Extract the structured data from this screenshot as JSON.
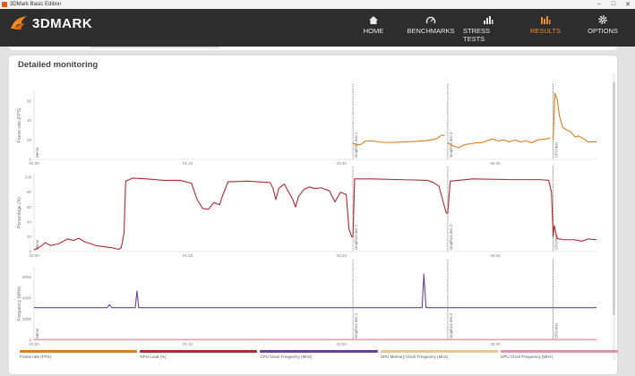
{
  "window": {
    "title": "3DMark Basic Edition"
  },
  "brand": {
    "name": "3DMARK",
    "accent": "#f08a22"
  },
  "nav": [
    {
      "id": "home",
      "label": "HOME",
      "icon": "home-icon"
    },
    {
      "id": "benchmarks",
      "label": "BENCHMARKS",
      "icon": "gauge-icon"
    },
    {
      "id": "stress",
      "label": "STRESS TESTS",
      "icon": "bar-chart-icon"
    },
    {
      "id": "results",
      "label": "RESULTS",
      "icon": "results-icon",
      "active": true
    },
    {
      "id": "options",
      "label": "OPTIONS",
      "icon": "gear-icon"
    }
  ],
  "section_title": "Detailed monitoring",
  "chart_data": [
    {
      "type": "line",
      "ylabel": "Frame rate (FPS)",
      "ylim": [
        0,
        70
      ],
      "yticks": [
        0,
        20,
        40,
        60
      ],
      "xticks": [
        "00:00",
        "01:40",
        "03:20",
        "05:00"
      ],
      "markers": [
        {
          "label": "Demo",
          "x": 0
        },
        {
          "label": "Graphics test 1",
          "x": 0.567
        },
        {
          "label": "Graphics test 2",
          "x": 0.7355
        },
        {
          "label": "CPU test",
          "x": 0.923
        }
      ],
      "series": [
        {
          "name": "Frame rate (FPS)",
          "color": "#e07c1c",
          "points": [
            [
              0.567,
              17
            ],
            [
              0.572,
              15
            ],
            [
              0.58,
              15
            ],
            [
              0.59,
              19
            ],
            [
              0.6,
              19
            ],
            [
              0.62,
              17.5
            ],
            [
              0.64,
              17.5
            ],
            [
              0.66,
              18
            ],
            [
              0.68,
              18.5
            ],
            [
              0.7,
              19.5
            ],
            [
              0.715,
              21
            ],
            [
              0.725,
              25
            ],
            [
              0.73,
              24.5
            ],
            [
              0.7355,
              17
            ],
            [
              0.745,
              14
            ],
            [
              0.755,
              12
            ],
            [
              0.765,
              15
            ],
            [
              0.775,
              16
            ],
            [
              0.785,
              17
            ],
            [
              0.795,
              17
            ],
            [
              0.805,
              19
            ],
            [
              0.815,
              21
            ],
            [
              0.825,
              19
            ],
            [
              0.835,
              20
            ],
            [
              0.845,
              18
            ],
            [
              0.855,
              20
            ],
            [
              0.865,
              18
            ],
            [
              0.875,
              19
            ],
            [
              0.885,
              17
            ],
            [
              0.895,
              20
            ],
            [
              0.91,
              21
            ],
            [
              0.918,
              22
            ],
            [
              0.923,
              20
            ],
            [
              0.926,
              68
            ],
            [
              0.93,
              62
            ],
            [
              0.934,
              45
            ],
            [
              0.94,
              33
            ],
            [
              0.948,
              30
            ],
            [
              0.955,
              28
            ],
            [
              0.962,
              23
            ],
            [
              0.968,
              24
            ],
            [
              0.975,
              22
            ],
            [
              0.985,
              18
            ],
            [
              1.0,
              18
            ]
          ]
        }
      ]
    },
    {
      "type": "line",
      "ylabel": "Percentage (%)",
      "ylim": [
        0,
        105
      ],
      "yticks": [
        0,
        20,
        40,
        60,
        80,
        100
      ],
      "xticks": [
        "00:00",
        "01:40",
        "03:20",
        "05:00"
      ],
      "markers": [
        {
          "label": "Demo",
          "x": 0
        },
        {
          "label": "Graphics test 1",
          "x": 0.567
        },
        {
          "label": "Graphics test 2",
          "x": 0.7355
        },
        {
          "label": "CPU test",
          "x": 0.923
        }
      ],
      "series": [
        {
          "name": "GPU Load (%)",
          "color": "#b3282d",
          "points": [
            [
              0,
              2
            ],
            [
              0.012,
              7
            ],
            [
              0.02,
              12
            ],
            [
              0.03,
              8
            ],
            [
              0.045,
              11
            ],
            [
              0.06,
              17
            ],
            [
              0.07,
              15
            ],
            [
              0.08,
              18
            ],
            [
              0.09,
              13
            ],
            [
              0.1,
              11
            ],
            [
              0.11,
              8
            ],
            [
              0.12,
              7
            ],
            [
              0.13,
              6
            ],
            [
              0.14,
              5
            ],
            [
              0.15,
              3
            ],
            [
              0.155,
              5
            ],
            [
              0.16,
              25
            ],
            [
              0.163,
              95
            ],
            [
              0.175,
              99
            ],
            [
              0.2,
              98
            ],
            [
              0.23,
              96
            ],
            [
              0.26,
              96
            ],
            [
              0.28,
              92
            ],
            [
              0.29,
              70
            ],
            [
              0.3,
              58
            ],
            [
              0.31,
              57
            ],
            [
              0.32,
              66
            ],
            [
              0.33,
              63
            ],
            [
              0.335,
              75
            ],
            [
              0.345,
              94
            ],
            [
              0.38,
              95
            ],
            [
              0.42,
              93
            ],
            [
              0.425,
              85
            ],
            [
              0.43,
              70
            ],
            [
              0.435,
              85
            ],
            [
              0.445,
              91
            ],
            [
              0.46,
              70
            ],
            [
              0.465,
              60
            ],
            [
              0.47,
              74
            ],
            [
              0.48,
              84
            ],
            [
              0.49,
              87
            ],
            [
              0.5,
              85
            ],
            [
              0.51,
              86
            ],
            [
              0.525,
              82
            ],
            [
              0.535,
              67
            ],
            [
              0.545,
              80
            ],
            [
              0.555,
              77
            ],
            [
              0.56,
              30
            ],
            [
              0.565,
              20
            ],
            [
              0.567,
              20
            ],
            [
              0.57,
              98
            ],
            [
              0.6,
              98
            ],
            [
              0.65,
              97
            ],
            [
              0.7,
              96
            ],
            [
              0.71,
              93
            ],
            [
              0.72,
              88
            ],
            [
              0.728,
              65
            ],
            [
              0.733,
              52
            ],
            [
              0.7355,
              52
            ],
            [
              0.74,
              95
            ],
            [
              0.78,
              98
            ],
            [
              0.85,
              97
            ],
            [
              0.9,
              97
            ],
            [
              0.915,
              96
            ],
            [
              0.92,
              80
            ],
            [
              0.923,
              20
            ],
            [
              0.925,
              35
            ],
            [
              0.93,
              18
            ],
            [
              0.94,
              16
            ],
            [
              0.96,
              16
            ],
            [
              0.975,
              14
            ],
            [
              0.985,
              17
            ],
            [
              1.0,
              16
            ]
          ]
        }
      ]
    },
    {
      "type": "line",
      "ylabel": "Frequency (MHz)",
      "ylim": [
        0,
        7000
      ],
      "yticks": [
        0,
        2000,
        4000,
        6000
      ],
      "xticks": [
        "00:00",
        "01:40",
        "03:20",
        "05:00"
      ],
      "markers": [
        {
          "label": "Demo",
          "x": 0
        },
        {
          "label": "Graphics test 1",
          "x": 0.567
        },
        {
          "label": "Graphics test 2",
          "x": 0.7355
        },
        {
          "label": "CPU test",
          "x": 0.923
        }
      ],
      "series": [
        {
          "name": "CPU Clock Frequency (MHz)",
          "color": "#6a3fa0",
          "points": [
            [
              0,
              3100
            ],
            [
              0.13,
              3100
            ],
            [
              0.134,
              3400
            ],
            [
              0.138,
              3100
            ],
            [
              0.18,
              3100
            ],
            [
              0.183,
              4700
            ],
            [
              0.186,
              3100
            ],
            [
              0.65,
              3100
            ],
            [
              0.69,
              3100
            ],
            [
              0.693,
              6300
            ],
            [
              0.697,
              3100
            ],
            [
              1.0,
              3100
            ]
          ]
        },
        {
          "name": "GPU Memory Clock Frequency (MHz)",
          "color": "#e6c98a",
          "points": [
            [
              0,
              40
            ],
            [
              1.0,
              40
            ]
          ]
        },
        {
          "name": "GPU Clock Frequency (MHz)",
          "color": "#e58fb3",
          "points": [
            [
              0,
              70
            ],
            [
              1.0,
              70
            ]
          ]
        }
      ]
    }
  ],
  "legend": [
    {
      "label": "Frame rate (FPS)",
      "color": "#e07c1c"
    },
    {
      "label": "GPU Load (%)",
      "color": "#b3282d"
    },
    {
      "label": "CPU Clock Frequency (MHz)",
      "color": "#6a3fa0"
    },
    {
      "label": "GPU Memory Clock Frequency (MHz)",
      "color": "#e6c98a"
    },
    {
      "label": "GPU Clock Frequency (MHz)",
      "color": "#e58fb3"
    }
  ]
}
